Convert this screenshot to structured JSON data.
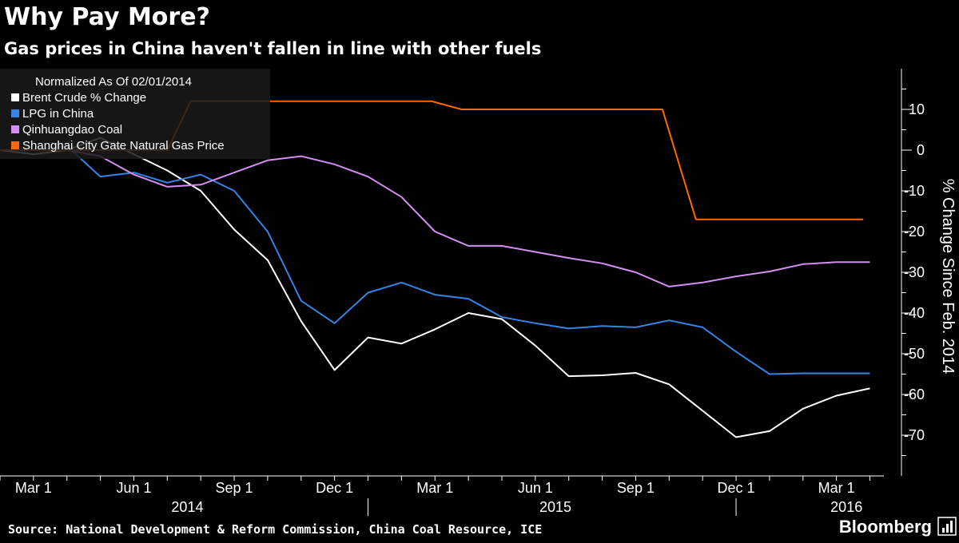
{
  "chart_data": {
    "type": "line",
    "title": "Why Pay More?",
    "subtitle": "Gas prices in China haven't fallen in line with other fuels",
    "ylabel": "% Change Since Feb. 2014",
    "xlabel": "",
    "ylim": [
      -80,
      20
    ],
    "yticks": [
      10,
      0,
      -10,
      -20,
      -30,
      -40,
      -50,
      -60,
      -70
    ],
    "xlim": [
      0,
      25.8
    ],
    "xticks": [
      {
        "x": 0,
        "label": "Mar 1"
      },
      {
        "x": 3,
        "label": "Jun 1"
      },
      {
        "x": 6,
        "label": "Sep 1"
      },
      {
        "x": 9,
        "label": "Dec 1"
      },
      {
        "x": 12,
        "label": "Mar 1"
      },
      {
        "x": 15,
        "label": "Jun 1"
      },
      {
        "x": 18,
        "label": "Sep 1"
      },
      {
        "x": 21,
        "label": "Dec 1"
      },
      {
        "x": 24,
        "label": "Mar 1"
      }
    ],
    "year_labels": [
      {
        "x": 4.6,
        "label": "2014"
      },
      {
        "x": 15.6,
        "label": "2015"
      },
      {
        "x": 24.3,
        "label": "2016"
      }
    ],
    "year_dividers": [
      10,
      21
    ],
    "legend_title": "Normalized As Of 02/01/2014",
    "grid": false,
    "series": [
      {
        "name": "Brent Crude % Change",
        "color": "#ffffff",
        "x": [
          -1,
          0,
          1,
          2,
          3,
          4,
          5,
          6,
          7,
          8,
          9,
          10,
          11,
          12,
          13,
          14,
          15,
          16,
          17,
          18,
          19,
          20,
          21,
          22,
          23,
          24,
          25
        ],
        "values": [
          0,
          -1,
          0,
          3,
          -1,
          -5,
          -10,
          -19.5,
          -27,
          -42,
          -54,
          -46,
          -47.5,
          -44,
          -40,
          -41.5,
          -48,
          -55.5,
          -55.3,
          -54.7,
          -57.5,
          -64,
          -70.5,
          -69,
          -63.5,
          -60.3,
          -58.5
        ]
      },
      {
        "name": "LPG in China",
        "color": "#3584e4",
        "x": [
          -1,
          0,
          1,
          2,
          3,
          4,
          5,
          6,
          7,
          8,
          9,
          10,
          11,
          12,
          13,
          14,
          15,
          16,
          17,
          18,
          19,
          20,
          21,
          22,
          23,
          24,
          25
        ],
        "values": [
          0,
          0,
          1,
          -6.5,
          -5.5,
          -8,
          -6,
          -10,
          -20,
          -37,
          -42.5,
          -35,
          -32.5,
          -35.5,
          -36.5,
          -41,
          -42.5,
          -43.8,
          -43.2,
          -43.5,
          -41.8,
          -43.5,
          -49.5,
          -55,
          -54.8,
          -54.8,
          -54.8
        ]
      },
      {
        "name": "Qinhuangdao Coal",
        "color": "#d48ef3",
        "x": [
          -1,
          0,
          1,
          2,
          3,
          4,
          5,
          6,
          7,
          8,
          9,
          10,
          11,
          12,
          13,
          14,
          15,
          16,
          17,
          18,
          19,
          20,
          21,
          22,
          23,
          24,
          25
        ],
        "values": [
          0,
          0,
          0,
          -1.5,
          -6,
          -9,
          -8.5,
          -5.5,
          -2.5,
          -1.5,
          -3.5,
          -6.5,
          -11.5,
          -20,
          -23.5,
          -23.5,
          -25,
          -26.5,
          -27.8,
          -30,
          -33.5,
          -32.5,
          -31,
          -29.8,
          -28,
          -27.5,
          -27.5
        ]
      },
      {
        "name": "Shanghai City Gate Natural Gas Price",
        "color": "#ff6a00",
        "x": [
          -1,
          4,
          4.7,
          6.9,
          11.9,
          12.8,
          18.8,
          19.8,
          24.8
        ],
        "values": [
          0,
          0,
          12,
          12,
          12,
          10,
          10,
          -17,
          -17
        ]
      }
    ]
  },
  "footer": {
    "source": "Source: National Development & Reform Commission, China Coal Resource, ICE",
    "brand": "Bloomberg"
  }
}
